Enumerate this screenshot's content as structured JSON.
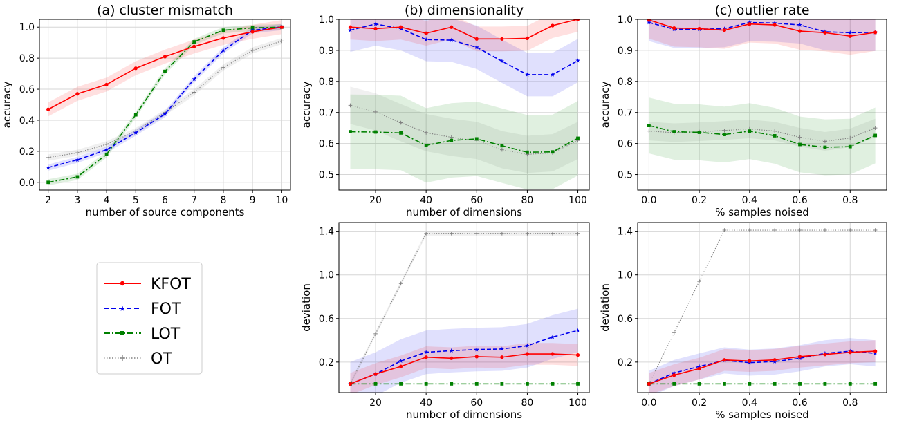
{
  "chart_data": [
    {
      "id": "a",
      "type": "line",
      "title": "(a) cluster mismatch",
      "xlabel": "number of source components",
      "ylabel": "accuracy",
      "xlim": [
        1.7,
        10.3
      ],
      "ylim": [
        -0.05,
        1.05
      ],
      "xticks": [
        2,
        3,
        4,
        5,
        6,
        7,
        8,
        9,
        10
      ],
      "yticks": [
        0.0,
        0.2,
        0.4,
        0.6,
        0.8,
        1.0
      ],
      "tick_decimals": 1,
      "x": [
        2,
        3,
        4,
        5,
        6,
        7,
        8,
        9,
        10
      ],
      "series": [
        {
          "key": "kfot",
          "values": [
            0.47,
            0.57,
            0.63,
            0.735,
            0.81,
            0.875,
            0.93,
            0.97,
            1.0
          ],
          "band": 0.045
        },
        {
          "key": "fot",
          "values": [
            0.095,
            0.145,
            0.21,
            0.32,
            0.44,
            0.665,
            0.85,
            0.98,
            1.0
          ],
          "band": 0.02
        },
        {
          "key": "lot",
          "values": [
            0.0,
            0.035,
            0.18,
            0.435,
            0.715,
            0.905,
            0.98,
            0.995,
            1.0
          ],
          "band": 0.02
        },
        {
          "key": "ot",
          "values": [
            0.16,
            0.19,
            0.245,
            0.33,
            0.45,
            0.58,
            0.74,
            0.85,
            0.91
          ],
          "band": 0.02
        }
      ]
    },
    {
      "id": "b-top",
      "type": "line",
      "title": "(b) dimensionality",
      "xlabel": "number of dimensions",
      "ylabel": "accuracy",
      "xlim": [
        5.5,
        104.5
      ],
      "ylim": [
        0.45,
        1.0
      ],
      "xticks": [
        20,
        40,
        60,
        80,
        100
      ],
      "yticks": [
        0.5,
        0.6,
        0.7,
        0.8,
        0.9,
        1.0
      ],
      "tick_decimals": 1,
      "x": [
        10,
        20,
        30,
        40,
        50,
        60,
        70,
        80,
        90,
        100
      ],
      "series": [
        {
          "key": "kfot",
          "values": [
            0.975,
            0.97,
            0.975,
            0.955,
            0.975,
            0.937,
            0.937,
            0.939,
            0.98,
            1.0
          ],
          "band": 0.04
        },
        {
          "key": "fot",
          "values": [
            0.965,
            0.985,
            0.97,
            0.935,
            0.933,
            0.91,
            0.865,
            0.822,
            0.822,
            0.867
          ],
          "band": 0.07
        },
        {
          "key": "lot",
          "values": [
            0.638,
            0.637,
            0.634,
            0.594,
            0.61,
            0.615,
            0.593,
            0.572,
            0.573,
            0.617
          ],
          "band": 0.12
        },
        {
          "key": "ot",
          "values": [
            0.723,
            0.702,
            0.667,
            0.635,
            0.62,
            0.61,
            0.58,
            0.565,
            0.57,
            0.61
          ],
          "band": 0.06
        }
      ]
    },
    {
      "id": "c-top",
      "type": "line",
      "title": "(c) outlier rate",
      "xlabel": "% samples noised",
      "ylabel": "accuracy",
      "xlim": [
        -0.045,
        0.945
      ],
      "ylim": [
        0.45,
        1.0
      ],
      "xticks": [
        0.0,
        0.2,
        0.4,
        0.6,
        0.8
      ],
      "yticks": [
        0.5,
        0.6,
        0.7,
        0.8,
        0.9,
        1.0
      ],
      "tick_decimals": 1,
      "x": [
        0.0,
        0.1,
        0.2,
        0.3,
        0.4,
        0.5,
        0.6,
        0.7,
        0.8,
        0.9
      ],
      "series": [
        {
          "key": "kfot",
          "values": [
            0.998,
            0.972,
            0.97,
            0.965,
            0.985,
            0.982,
            0.962,
            0.957,
            0.946,
            0.958
          ],
          "band": 0.06
        },
        {
          "key": "fot",
          "values": [
            0.99,
            0.968,
            0.968,
            0.97,
            0.99,
            0.988,
            0.982,
            0.96,
            0.957,
            0.958
          ],
          "band": 0.06
        },
        {
          "key": "lot",
          "values": [
            0.658,
            0.638,
            0.636,
            0.629,
            0.64,
            0.625,
            0.597,
            0.588,
            0.59,
            0.626
          ],
          "band": 0.09
        },
        {
          "key": "ot",
          "values": [
            0.64,
            0.635,
            0.638,
            0.642,
            0.647,
            0.64,
            0.62,
            0.607,
            0.618,
            0.65
          ],
          "band": 0.03
        }
      ]
    },
    {
      "id": "b-bottom",
      "type": "line",
      "title": "",
      "xlabel": "number of dimensions",
      "ylabel": "deviation",
      "xlim": [
        5.5,
        104.5
      ],
      "ylim": [
        -0.08,
        1.48
      ],
      "xticks": [
        20,
        40,
        60,
        80,
        100
      ],
      "yticks": [
        0.2,
        0.6,
        1.0,
        1.4
      ],
      "tick_decimals": 1,
      "x": [
        10,
        20,
        30,
        40,
        50,
        60,
        70,
        80,
        90,
        100
      ],
      "series": [
        {
          "key": "kfot",
          "values": [
            0.0,
            0.09,
            0.16,
            0.245,
            0.235,
            0.25,
            0.245,
            0.275,
            0.275,
            0.265
          ],
          "band": 0.1
        },
        {
          "key": "fot",
          "values": [
            0.0,
            0.09,
            0.21,
            0.29,
            0.305,
            0.315,
            0.32,
            0.35,
            0.43,
            0.49
          ],
          "band": 0.2
        },
        {
          "key": "lot",
          "values": [
            0.0,
            0.0,
            0.0,
            0.0,
            0.0,
            0.0,
            0.0,
            0.0,
            0.0,
            0.0
          ],
          "band": 0.0
        },
        {
          "key": "ot",
          "values": [
            0.0,
            0.46,
            0.92,
            1.38,
            1.38,
            1.38,
            1.38,
            1.38,
            1.38,
            1.38
          ],
          "band": 0.02
        }
      ]
    },
    {
      "id": "c-bottom",
      "type": "line",
      "title": "",
      "xlabel": "% samples noised",
      "ylabel": "deviation",
      "xlim": [
        -0.045,
        0.945
      ],
      "ylim": [
        -0.08,
        1.48
      ],
      "xticks": [
        0.0,
        0.2,
        0.4,
        0.6,
        0.8
      ],
      "yticks": [
        0.2,
        0.6,
        1.0,
        1.4
      ],
      "tick_decimals": 1,
      "x": [
        0.0,
        0.1,
        0.2,
        0.3,
        0.4,
        0.5,
        0.6,
        0.7,
        0.8,
        0.9
      ],
      "series": [
        {
          "key": "kfot",
          "values": [
            0.0,
            0.08,
            0.14,
            0.22,
            0.21,
            0.22,
            0.25,
            0.27,
            0.29,
            0.3
          ],
          "band": 0.1
        },
        {
          "key": "fot",
          "values": [
            0.0,
            0.1,
            0.16,
            0.215,
            0.195,
            0.205,
            0.235,
            0.28,
            0.3,
            0.28
          ],
          "band": 0.12
        },
        {
          "key": "lot",
          "values": [
            0.0,
            0.0,
            0.0,
            0.0,
            0.0,
            0.0,
            0.0,
            0.0,
            0.0,
            0.0
          ],
          "band": 0.0
        },
        {
          "key": "ot",
          "values": [
            0.0,
            0.47,
            0.94,
            1.41,
            1.41,
            1.41,
            1.41,
            1.41,
            1.41,
            1.41
          ],
          "band": 0.0
        }
      ]
    }
  ],
  "legend": {
    "placement": "lower-left",
    "entries": [
      {
        "key": "kfot",
        "label": "KFOT",
        "color": "#ff0000",
        "marker": "circle",
        "dash": "solid"
      },
      {
        "key": "fot",
        "label": "FOT",
        "color": "#0000ee",
        "marker": "star",
        "dash": "dashed"
      },
      {
        "key": "lot",
        "label": "LOT",
        "color": "#008000",
        "marker": "square",
        "dash": "dashdot"
      },
      {
        "key": "ot",
        "label": "OT",
        "color": "#808080",
        "marker": "plus",
        "dash": "dotted"
      }
    ]
  }
}
